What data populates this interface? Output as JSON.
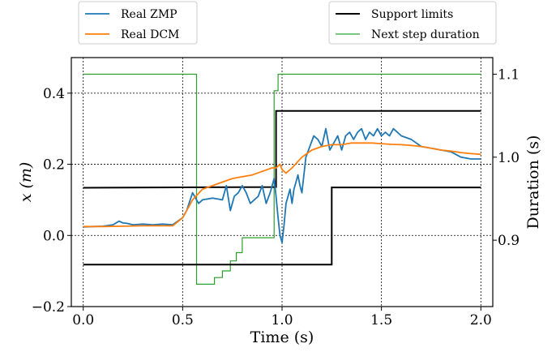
{
  "chart_data": {
    "type": "line",
    "xlabel": "Time (s)",
    "ylabel_left": "x (m)",
    "ylabel_right": "Duration (s)",
    "xlim": [
      -0.06,
      2.06
    ],
    "ylim_left": [
      -0.2,
      0.5
    ],
    "ylim_right": [
      0.82,
      1.12
    ],
    "x_ticks": [
      0.0,
      0.5,
      1.0,
      1.5,
      2.0
    ],
    "x_tick_labels": [
      "0.0",
      "0.5",
      "1.0",
      "1.5",
      "2.0"
    ],
    "y_left_ticks": [
      -0.2,
      0.0,
      0.2,
      0.4
    ],
    "y_left_tick_labels": [
      "−0.2",
      "0.0",
      "0.2",
      "0.4"
    ],
    "y_right_ticks": [
      0.9,
      1.0,
      1.1
    ],
    "y_right_tick_labels": [
      "0.9",
      "1.0",
      "1.1"
    ],
    "grid": true,
    "legend_placement": "above",
    "series": [
      {
        "name": "Real ZMP",
        "color": "#1f77b4",
        "axis": "left",
        "x": [
          0.0,
          0.05,
          0.1,
          0.15,
          0.18,
          0.2,
          0.22,
          0.25,
          0.3,
          0.35,
          0.4,
          0.45,
          0.5,
          0.52,
          0.55,
          0.58,
          0.6,
          0.65,
          0.7,
          0.72,
          0.74,
          0.76,
          0.78,
          0.8,
          0.82,
          0.84,
          0.86,
          0.88,
          0.9,
          0.92,
          0.94,
          0.96,
          0.97,
          0.98,
          0.99,
          1.0,
          1.01,
          1.02,
          1.03,
          1.04,
          1.05,
          1.06,
          1.07,
          1.08,
          1.09,
          1.1,
          1.12,
          1.14,
          1.16,
          1.18,
          1.2,
          1.22,
          1.24,
          1.26,
          1.28,
          1.3,
          1.32,
          1.34,
          1.36,
          1.38,
          1.4,
          1.42,
          1.44,
          1.46,
          1.48,
          1.5,
          1.52,
          1.54,
          1.56,
          1.58,
          1.6,
          1.65,
          1.7,
          1.75,
          1.8,
          1.85,
          1.9,
          1.95,
          2.0
        ],
        "y": [
          0.024,
          0.025,
          0.026,
          0.03,
          0.04,
          0.035,
          0.034,
          0.03,
          0.032,
          0.03,
          0.032,
          0.03,
          0.05,
          0.07,
          0.12,
          0.09,
          0.1,
          0.105,
          0.1,
          0.14,
          0.07,
          0.11,
          0.12,
          0.14,
          0.12,
          0.09,
          0.1,
          0.11,
          0.14,
          0.09,
          0.12,
          0.16,
          0.11,
          0.05,
          0.0,
          -0.02,
          0.03,
          0.09,
          0.11,
          0.13,
          0.09,
          0.13,
          0.15,
          0.17,
          0.14,
          0.12,
          0.22,
          0.25,
          0.28,
          0.27,
          0.25,
          0.3,
          0.24,
          0.26,
          0.28,
          0.24,
          0.28,
          0.29,
          0.27,
          0.29,
          0.3,
          0.27,
          0.29,
          0.28,
          0.3,
          0.28,
          0.29,
          0.28,
          0.3,
          0.29,
          0.28,
          0.27,
          0.25,
          0.245,
          0.24,
          0.235,
          0.22,
          0.215,
          0.215
        ]
      },
      {
        "name": "Real DCM",
        "color": "#ff7f0e",
        "axis": "left",
        "x": [
          0.0,
          0.1,
          0.2,
          0.3,
          0.4,
          0.45,
          0.5,
          0.55,
          0.6,
          0.65,
          0.7,
          0.75,
          0.8,
          0.85,
          0.9,
          0.95,
          0.97,
          0.99,
          1.0,
          1.02,
          1.05,
          1.1,
          1.15,
          1.2,
          1.25,
          1.3,
          1.35,
          1.4,
          1.45,
          1.5,
          1.55,
          1.6,
          1.65,
          1.7,
          1.75,
          1.8,
          1.85,
          1.9,
          1.95,
          2.0
        ],
        "y": [
          0.025,
          0.025,
          0.026,
          0.027,
          0.027,
          0.027,
          0.05,
          0.1,
          0.13,
          0.14,
          0.15,
          0.16,
          0.165,
          0.17,
          0.18,
          0.19,
          0.19,
          0.2,
          0.185,
          0.175,
          0.19,
          0.22,
          0.24,
          0.25,
          0.255,
          0.255,
          0.26,
          0.26,
          0.26,
          0.258,
          0.256,
          0.255,
          0.253,
          0.25,
          0.245,
          0.24,
          0.237,
          0.233,
          0.23,
          0.228
        ]
      },
      {
        "name": "Support limits",
        "color": "#000000",
        "axis": "left",
        "segments": [
          {
            "x": [
              0.0,
              0.97,
              0.97,
              2.0
            ],
            "y": [
              0.134,
              0.136,
              0.35,
              0.35
            ]
          },
          {
            "x": [
              0.0,
              1.25,
              1.25,
              2.0
            ],
            "y": [
              -0.082,
              -0.082,
              0.135,
              0.135
            ]
          }
        ]
      },
      {
        "name": "Next step duration",
        "color": "#2ca02c",
        "axis": "right",
        "x": [
          0.0,
          0.57,
          0.57,
          0.66,
          0.66,
          0.7,
          0.7,
          0.74,
          0.74,
          0.77,
          0.77,
          0.8,
          0.8,
          0.96,
          0.96,
          0.98,
          0.98,
          2.0
        ],
        "y": [
          1.1,
          1.1,
          0.847,
          0.847,
          0.855,
          0.855,
          0.863,
          0.863,
          0.875,
          0.875,
          0.885,
          0.885,
          0.903,
          0.903,
          1.08,
          1.08,
          1.1,
          1.1
        ]
      }
    ]
  }
}
